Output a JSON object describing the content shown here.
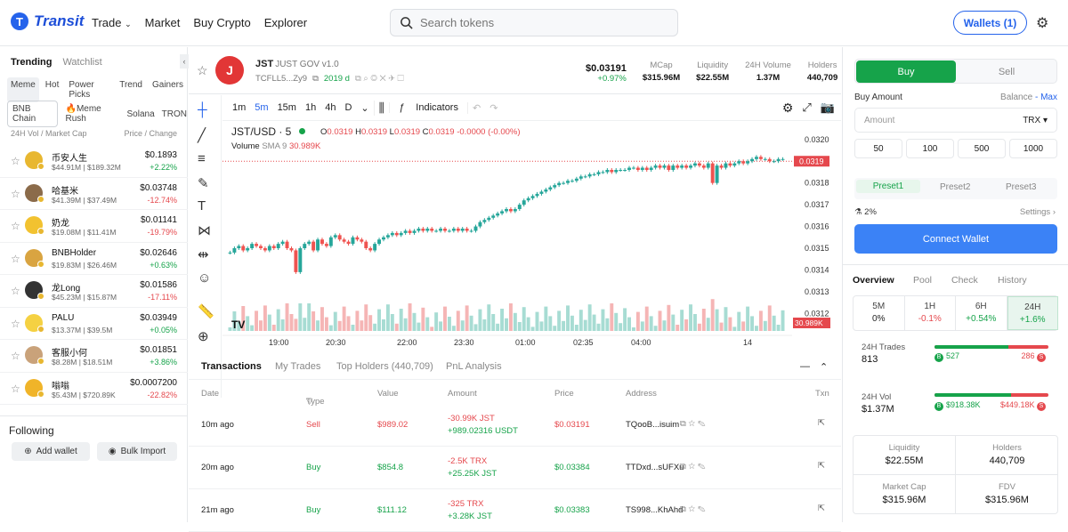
{
  "topbar": {
    "brand": "Transit",
    "nav": [
      "Trade",
      "Market",
      "Buy Crypto",
      "Explorer"
    ],
    "search_placeholder": "Search tokens",
    "wallets_label": "Wallets (1)"
  },
  "left": {
    "tabs": [
      "Trending",
      "Watchlist"
    ],
    "filters": [
      "Meme",
      "Hot",
      "Power Picks",
      "Trend",
      "Gainers"
    ],
    "chains": [
      "BNB Chain",
      "Meme Rush",
      "Solana",
      "TRON"
    ],
    "col_left": "24H Vol / Market Cap",
    "col_right": "Price / Change",
    "tokens": [
      {
        "name": "币安人生",
        "sub": "$44.91M | $189.32M",
        "price": "$0.1893",
        "change": "+2.22%",
        "up": true
      },
      {
        "name": "哈基米",
        "sub": "$41.39M | $37.49M",
        "price": "$0.03748",
        "change": "-12.74%",
        "up": false
      },
      {
        "name": "奶龙",
        "sub": "$19.08M | $11.41M",
        "price": "$0.01141",
        "change": "-19.79%",
        "up": false
      },
      {
        "name": "BNBHolder",
        "sub": "$19.83M | $26.46M",
        "price": "$0.02646",
        "change": "+0.63%",
        "up": true
      },
      {
        "name": "龙Long",
        "sub": "$45.23M | $15.87M",
        "price": "$0.01586",
        "change": "-17.11%",
        "up": false
      },
      {
        "name": "PALU",
        "sub": "$13.37M | $39.5M",
        "price": "$0.03949",
        "change": "+0.05%",
        "up": true
      },
      {
        "name": "客服小何",
        "sub": "$8.28M | $18.51M",
        "price": "$0.01851",
        "change": "+3.86%",
        "up": true
      },
      {
        "name": "嗡嗡",
        "sub": "$5.43M | $720.89K",
        "price": "$0.0007200",
        "change": "-22.82%",
        "up": false
      }
    ],
    "following_title": "Following",
    "add_wallet": "Add wallet",
    "bulk_import": "Bulk Import"
  },
  "token": {
    "symbol": "JST",
    "fullname": "JUST GOV v1.0",
    "address": "TCFLL5...Zy9",
    "age": "2019 d",
    "price": "$0.03191",
    "price_change": "+0.97%",
    "mcap_label": "MCap",
    "mcap": "$315.96M",
    "liq_label": "Liquidity",
    "liq": "$22.55M",
    "vol_label": "24H Volume",
    "vol": "1.37M",
    "holders_label": "Holders",
    "holders": "440,709"
  },
  "chart_toolbar": {
    "intervals": [
      "1m",
      "5m",
      "15m",
      "1h",
      "4h",
      "D"
    ],
    "indicators": "Indicators"
  },
  "chart_data": {
    "type": "candlestick",
    "pair": "JST/USD · 5",
    "ohlc": {
      "O": "0.0319",
      "H": "0.0319",
      "L": "0.0319",
      "C": "0.0319",
      "change": "-0.0000 (-0.00%)"
    },
    "volume_label": "Volume",
    "sma_label": "SMA 9",
    "sma_value": "30.989K",
    "x_ticks": [
      "19:00",
      "20:30",
      "22:00",
      "23:30",
      "01:00",
      "02:35",
      "04:00",
      "14"
    ],
    "y_ticks": [
      "0.0320",
      "0.0319",
      "0.0318",
      "0.0317",
      "0.0316",
      "0.0315",
      "0.0314",
      "0.0313",
      "0.0312"
    ],
    "last_price": "0.0319",
    "last_volume": "30.989K",
    "close_series": [
      0.03148,
      0.0315,
      0.03151,
      0.03149,
      0.0315,
      0.03152,
      0.03151,
      0.0315,
      0.03149,
      0.03151,
      0.0315,
      0.03152,
      0.03153,
      0.0315,
      0.03149,
      0.03139,
      0.0315,
      0.03152,
      0.03153,
      0.03149,
      0.03154,
      0.03152,
      0.03151,
      0.03155,
      0.03156,
      0.03154,
      0.03153,
      0.03152,
      0.03155,
      0.03154,
      0.03153,
      0.0315,
      0.03149,
      0.03152,
      0.03154,
      0.03155,
      0.03156,
      0.03157,
      0.03156,
      0.03157,
      0.03158,
      0.03157,
      0.03158,
      0.03159,
      0.03158,
      0.03159,
      0.03158,
      0.03158,
      0.03159,
      0.03158,
      0.03158,
      0.03159,
      0.03158,
      0.03159,
      0.03158,
      0.03158,
      0.0316,
      0.03162,
      0.03163,
      0.03164,
      0.03165,
      0.03166,
      0.03167,
      0.03168,
      0.03167,
      0.03168,
      0.0317,
      0.03172,
      0.03173,
      0.03174,
      0.03175,
      0.03176,
      0.03177,
      0.03178,
      0.03179,
      0.0318,
      0.0318,
      0.03181,
      0.03181,
      0.03182,
      0.03183,
      0.03183,
      0.03184,
      0.03184,
      0.03185,
      0.03185,
      0.03186,
      0.03185,
      0.03186,
      0.03186,
      0.03186,
      0.03187,
      0.03187,
      0.03186,
      0.03187,
      0.03186,
      0.03187,
      0.03188,
      0.03187,
      0.03188,
      0.03186,
      0.03188,
      0.03187,
      0.03188,
      0.03187,
      0.03188,
      0.03189,
      0.03188,
      0.03187,
      0.03189,
      0.0318,
      0.03188,
      0.03187,
      0.03189,
      0.03188,
      0.03189,
      0.0319,
      0.03189,
      0.0319,
      0.03191,
      0.03192,
      0.03191,
      0.03191,
      0.0319,
      0.0319,
      0.03191,
      0.03191
    ],
    "ylim": [
      0.03114,
      0.03204
    ]
  },
  "tx": {
    "tabs": [
      "Transactions",
      "My Trades",
      "Top Holders (440,709)",
      "PnL Analysis"
    ],
    "headers": [
      "Date",
      "Type",
      "Value",
      "Amount",
      "Price",
      "Address",
      "Txn"
    ],
    "rows": [
      {
        "date": "10m ago",
        "type": "Sell",
        "value": "$989.02",
        "amt1": "-30.99K JST",
        "amt2": "+989.02316 USDT",
        "price": "$0.03191",
        "addr": "TQooB...isuim"
      },
      {
        "date": "20m ago",
        "type": "Buy",
        "value": "$854.8",
        "amt1": "-2.5K TRX",
        "amt2": "+25.25K JST",
        "price": "$0.03384",
        "addr": "TTDxd...sUFXu"
      },
      {
        "date": "21m ago",
        "type": "Buy",
        "value": "$111.12",
        "amt1": "-325 TRX",
        "amt2": "+3.28K JST",
        "price": "$0.03383",
        "addr": "TS998...KhAhd"
      }
    ]
  },
  "trade": {
    "buy": "Buy",
    "sell": "Sell",
    "amount_label": "Buy Amount",
    "balance_label": "Balance",
    "balance_value": "-",
    "max": "Max",
    "amount_placeholder": "Amount",
    "currency": "TRX",
    "presets": [
      "50",
      "100",
      "500",
      "1000"
    ],
    "preset_tabs": [
      "Preset1",
      "Preset2",
      "Preset3"
    ],
    "slippage": "2%",
    "settings": "Settings",
    "connect": "Connect Wallet"
  },
  "overview": {
    "tabs": [
      "Overview",
      "Pool",
      "Check",
      "History"
    ],
    "periods": [
      {
        "p": "5M",
        "v": "0%",
        "cls": ""
      },
      {
        "p": "1H",
        "v": "-0.1%",
        "cls": "neg"
      },
      {
        "p": "6H",
        "v": "+0.54%",
        "cls": "pos"
      },
      {
        "p": "24H",
        "v": "+1.6%",
        "cls": "pos"
      }
    ],
    "trades_label": "24H Trades",
    "trades": "813",
    "buys": "527",
    "sells": "286",
    "buy_share": 0.65,
    "vol_label": "24H Vol",
    "vol": "$1.37M",
    "buy_vol": "$918.38K",
    "sell_vol": "$449.18K",
    "vol_share": 0.67,
    "liq_label": "Liquidity",
    "liq": "$22.55M",
    "holders_label": "Holders",
    "holders": "440,709",
    "mcap_label": "Market Cap",
    "mcap": "$315.96M",
    "fdv_label": "FDV",
    "fdv": "$315.96M"
  }
}
